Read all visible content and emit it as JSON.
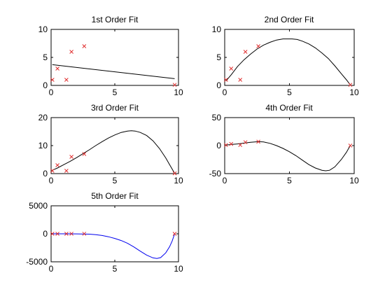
{
  "chart_data": [
    {
      "type": "scatter",
      "title": "1st Order Fit",
      "xlim": [
        0,
        10
      ],
      "ylim": [
        0,
        10
      ],
      "xticks": [
        0,
        5,
        10
      ],
      "yticks": [
        0,
        5,
        10
      ],
      "xtick_labels": [
        "0",
        "5",
        "10"
      ],
      "ytick_labels": [
        "0",
        "5",
        "10"
      ],
      "points": {
        "x": [
          0.1,
          0.5,
          1.2,
          1.6,
          2.6,
          9.7
        ],
        "y": [
          1.0,
          3.0,
          1.0,
          6.0,
          7.0,
          0.1
        ]
      },
      "fit": {
        "degree": 1,
        "x": [
          0.1,
          9.7
        ],
        "y": [
          3.7,
          1.2
        ]
      },
      "point_color": "#e03030",
      "fit_color": "#000000",
      "grid": false
    },
    {
      "type": "scatter",
      "title": "2nd Order Fit",
      "xlim": [
        0,
        10
      ],
      "ylim": [
        0,
        10
      ],
      "xticks": [
        0,
        5,
        10
      ],
      "yticks": [
        0,
        5,
        10
      ],
      "xtick_labels": [
        "0",
        "5",
        "10"
      ],
      "ytick_labels": [
        "0",
        "5",
        "10"
      ],
      "points": {
        "x": [
          0.1,
          0.5,
          1.2,
          1.6,
          2.6,
          9.7
        ],
        "y": [
          1.0,
          3.0,
          1.0,
          6.0,
          7.0,
          0.1
        ]
      },
      "fit": {
        "degree": 2,
        "x": [
          0.1,
          0.5,
          1.0,
          1.5,
          2.0,
          2.5,
          3.0,
          3.5,
          4.0,
          4.5,
          4.8,
          5.2,
          5.6,
          6.0,
          6.5,
          7.0,
          7.5,
          8.0,
          8.5,
          9.0,
          9.4,
          9.7
        ],
        "y": [
          0.8,
          1.9,
          3.4,
          4.6,
          5.6,
          6.5,
          7.2,
          7.7,
          8.1,
          8.3,
          8.3,
          8.3,
          8.2,
          7.9,
          7.4,
          6.7,
          5.8,
          4.8,
          3.5,
          2.1,
          1.0,
          0.1
        ]
      },
      "point_color": "#e03030",
      "fit_color": "#000000",
      "grid": false
    },
    {
      "type": "scatter",
      "title": "3rd Order Fit",
      "xlim": [
        0,
        10
      ],
      "ylim": [
        0,
        20
      ],
      "xticks": [
        0,
        5,
        10
      ],
      "yticks": [
        0,
        10,
        20
      ],
      "xtick_labels": [
        "0",
        "5",
        "10"
      ],
      "ytick_labels": [
        "0",
        "10",
        "20"
      ],
      "points": {
        "x": [
          0.1,
          0.5,
          1.2,
          1.6,
          2.6,
          9.7
        ],
        "y": [
          1.0,
          3.0,
          1.0,
          6.0,
          7.0,
          0.1
        ]
      },
      "fit": {
        "degree": 3,
        "x": [
          0.1,
          0.5,
          1.0,
          1.5,
          2.0,
          2.5,
          3.0,
          3.5,
          4.0,
          4.5,
          5.0,
          5.5,
          6.0,
          6.3,
          6.6,
          7.0,
          7.5,
          8.0,
          8.5,
          9.0,
          9.3,
          9.7
        ],
        "y": [
          1.2,
          2.0,
          3.2,
          4.4,
          5.7,
          7.1,
          8.5,
          10.0,
          11.4,
          12.7,
          13.8,
          14.7,
          15.2,
          15.3,
          15.2,
          14.7,
          13.6,
          11.7,
          9.0,
          5.6,
          3.2,
          0.1
        ]
      },
      "point_color": "#e03030",
      "fit_color": "#000000",
      "grid": false
    },
    {
      "type": "scatter",
      "title": "4th Order Fit",
      "xlim": [
        0,
        10
      ],
      "ylim": [
        -50,
        50
      ],
      "xticks": [
        0,
        5,
        10
      ],
      "yticks": [
        -50,
        0,
        50
      ],
      "xtick_labels": [
        "0",
        "5",
        "10"
      ],
      "ytick_labels": [
        "-50",
        "0",
        "50"
      ],
      "points": {
        "x": [
          0.1,
          0.5,
          1.2,
          1.6,
          2.6,
          9.7
        ],
        "y": [
          1.0,
          3.0,
          1.0,
          6.0,
          7.0,
          0.1
        ]
      },
      "fit": {
        "degree": 4,
        "x": [
          0.1,
          0.5,
          1.0,
          1.5,
          2.0,
          2.6,
          3.0,
          3.5,
          4.0,
          4.5,
          5.0,
          5.5,
          6.0,
          6.5,
          7.0,
          7.5,
          7.8,
          8.1,
          8.5,
          9.0,
          9.4,
          9.7
        ],
        "y": [
          1.0,
          2.0,
          3.0,
          4.5,
          6.0,
          7.0,
          6.5,
          4.0,
          0.0,
          -5.0,
          -11.0,
          -18.0,
          -26.0,
          -34.0,
          -40.0,
          -44.0,
          -45.0,
          -44.0,
          -38.0,
          -25.0,
          -12.0,
          0.1
        ]
      },
      "point_color": "#e03030",
      "fit_color": "#000000",
      "grid": false
    },
    {
      "type": "scatter",
      "title": "5th Order Fit",
      "xlim": [
        0,
        10
      ],
      "ylim": [
        -5000,
        5000
      ],
      "xticks": [
        0,
        5,
        10
      ],
      "yticks": [
        -5000,
        0,
        5000
      ],
      "xtick_labels": [
        "0",
        "5",
        "10"
      ],
      "ytick_labels": [
        "-5000",
        "0",
        "5000"
      ],
      "points": {
        "x": [
          0.1,
          0.5,
          1.2,
          1.6,
          2.6,
          9.7
        ],
        "y": [
          1.0,
          3.0,
          1.0,
          6.0,
          7.0,
          0.1
        ]
      },
      "fit": {
        "degree": 5,
        "x": [
          0.1,
          1.0,
          2.0,
          3.0,
          3.5,
          4.0,
          4.5,
          5.0,
          5.5,
          6.0,
          6.5,
          7.0,
          7.5,
          8.0,
          8.3,
          8.6,
          9.0,
          9.3,
          9.5,
          9.7
        ],
        "y": [
          0,
          0,
          -10,
          -60,
          -150,
          -300,
          -520,
          -820,
          -1200,
          -1700,
          -2350,
          -3100,
          -3800,
          -4300,
          -4400,
          -4250,
          -3400,
          -2300,
          -1300,
          0
        ]
      },
      "point_color": "#e03030",
      "fit_color": "#0000ee",
      "grid": false
    }
  ]
}
